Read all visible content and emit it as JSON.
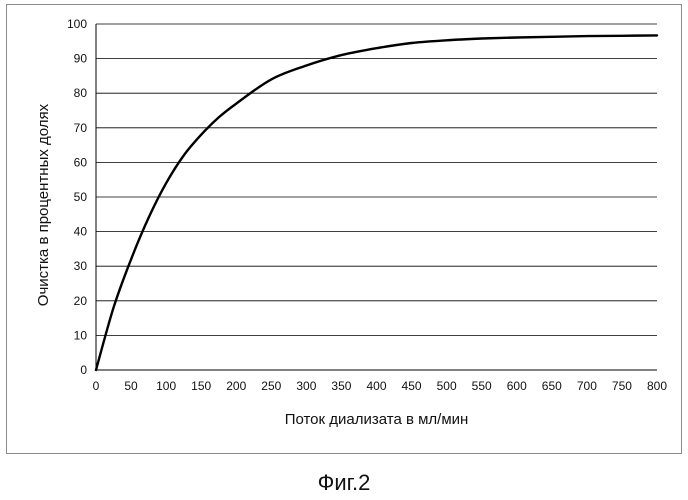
{
  "caption": "Фиг.2",
  "chart_data": {
    "type": "line",
    "xlabel": "Поток диализата в мл/мин",
    "ylabel": "Очистка в процентных долях",
    "xlim": [
      0,
      800
    ],
    "ylim": [
      0,
      100
    ],
    "x_ticks": [
      0,
      50,
      100,
      150,
      200,
      250,
      300,
      350,
      400,
      450,
      500,
      550,
      600,
      650,
      700,
      750,
      800
    ],
    "y_ticks": [
      0,
      10,
      20,
      30,
      40,
      50,
      60,
      70,
      80,
      90,
      100
    ],
    "grid": "horizontal",
    "legend": "none",
    "series": [
      {
        "x": [
          0,
          25,
          50,
          75,
          100,
          125,
          150,
          175,
          200,
          250,
          300,
          350,
          400,
          450,
          500,
          550,
          600,
          650,
          700,
          750,
          800
        ],
        "values": [
          0,
          18,
          32,
          44,
          54,
          62,
          68,
          73,
          77,
          84,
          88,
          91,
          93,
          94.5,
          95.3,
          95.8,
          96.1,
          96.3,
          96.5,
          96.6,
          96.7
        ]
      }
    ],
    "colors": {
      "line": "#000000",
      "grid": "#000000",
      "axis": "#000000"
    }
  }
}
